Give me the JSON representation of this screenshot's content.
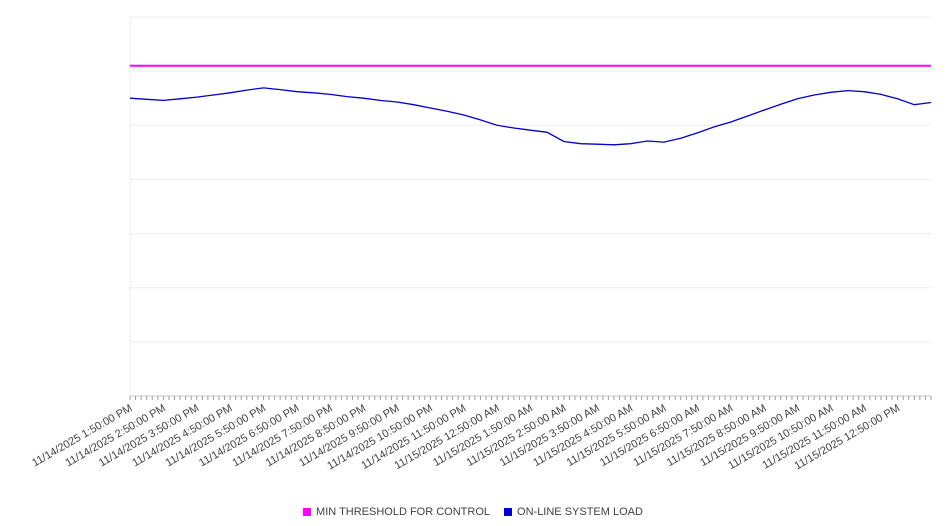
{
  "chart_data": {
    "type": "line",
    "title": "",
    "xlabel": "",
    "ylabel": "",
    "ylim": [
      0,
      700
    ],
    "y_gridline_step": 100,
    "grid": "horizontal",
    "legend_position": "bottom",
    "x_categories": [
      "11/14/2025 1:50:00 PM",
      "11/14/2025 2:50:00 PM",
      "11/14/2025 3:50:00 PM",
      "11/14/2025 4:50:00 PM",
      "11/14/2025 5:50:00 PM",
      "11/14/2025 6:50:00 PM",
      "11/14/2025 7:50:00 PM",
      "11/14/2025 8:50:00 PM",
      "11/14/2025 9:50:00 PM",
      "11/14/2025 10:50:00 PM",
      "11/14/2025 11:50:00 PM",
      "11/15/2025 12:50:00 AM",
      "11/15/2025 1:50:00 AM",
      "11/15/2025 2:50:00 AM",
      "11/15/2025 3:50:00 AM",
      "11/15/2025 4:50:00 AM",
      "11/15/2025 5:50:00 AM",
      "11/15/2025 6:50:00 AM",
      "11/15/2025 7:50:00 AM",
      "11/15/2025 8:50:00 AM",
      "11/15/2025 9:50:00 AM",
      "11/15/2025 10:50:00 AM",
      "11/15/2025 11:50:00 AM",
      "11/15/2025 12:50:00 PM"
    ],
    "series": [
      {
        "name": "MIN THRESHOLD FOR CONTROL",
        "color": "#FF00FF",
        "type": "constant",
        "value": 610
      },
      {
        "name": "ON-LINE SYSTEM LOAD",
        "color": "#0000CD",
        "type": "line",
        "values": [
          550,
          548,
          546,
          549,
          552,
          556,
          560,
          565,
          569,
          566,
          562,
          560,
          557,
          553,
          550,
          546,
          543,
          538,
          532,
          526,
          519,
          510,
          500,
          495,
          491,
          487,
          470,
          466,
          465,
          464,
          466,
          471,
          469,
          476,
          486,
          497,
          506,
          517,
          528,
          539,
          549,
          556,
          561,
          564,
          562,
          557,
          549,
          538,
          542
        ]
      }
    ]
  },
  "axis_style": {
    "gridline_color": "#ececec",
    "axis_line_color": "#c6c6c6",
    "tick_color": "#9e9e9e",
    "label_color": "#424242"
  }
}
